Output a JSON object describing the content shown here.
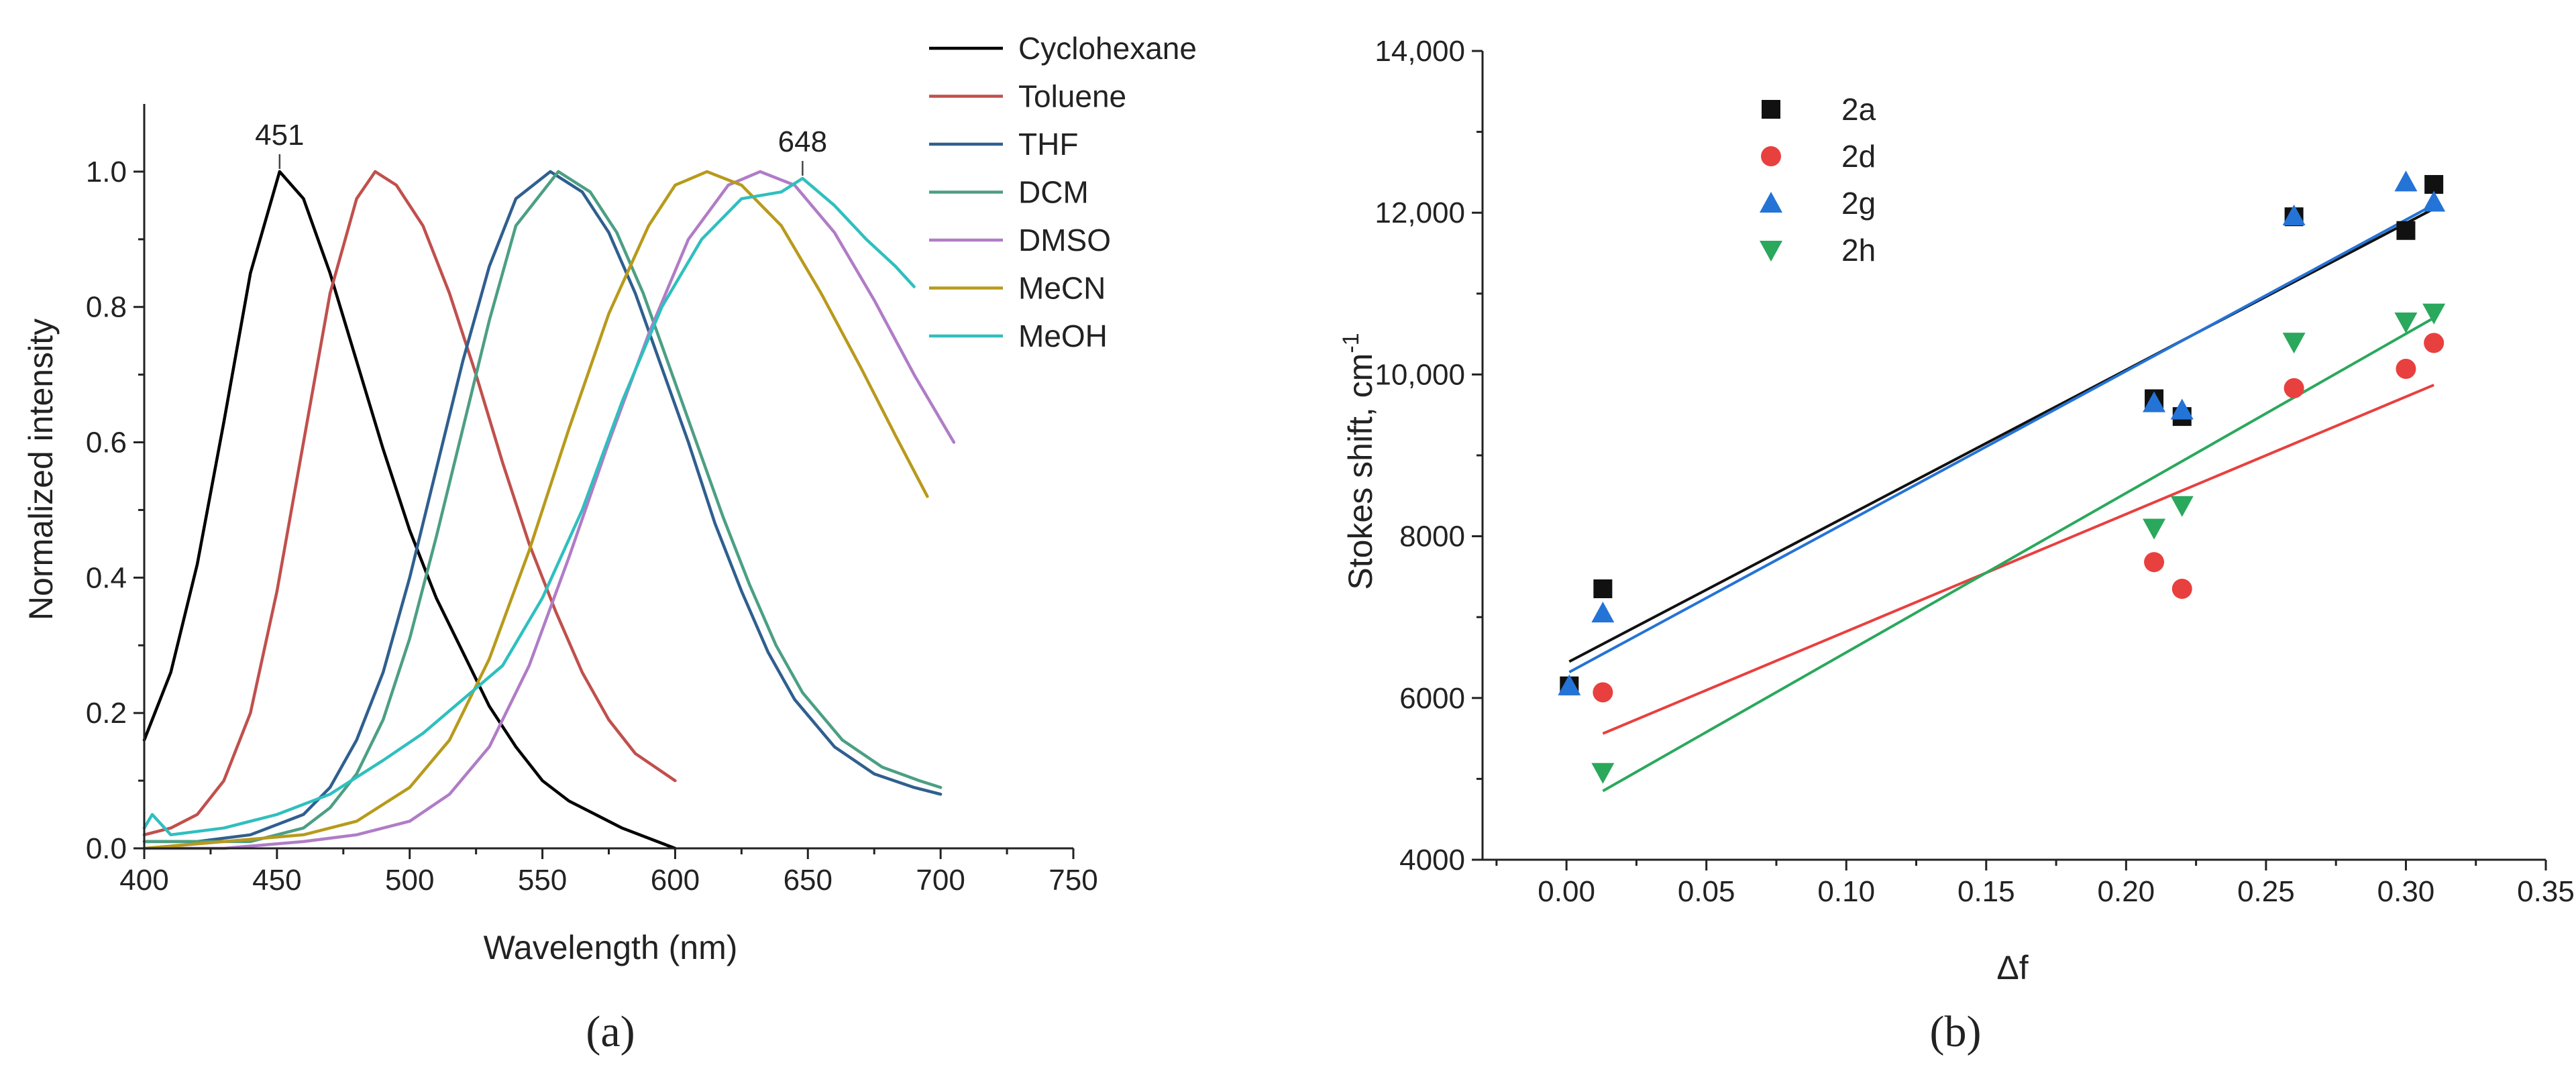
{
  "chart_data": [
    {
      "panel": "a",
      "panel_label": "(a)",
      "type": "line",
      "title": "",
      "xlabel": "Wavelength (nm)",
      "ylabel": "Normalized intensity",
      "xlim": [
        400,
        750
      ],
      "ylim": [
        0,
        1.1
      ],
      "xticks": [
        400,
        450,
        500,
        550,
        600,
        650,
        700,
        750
      ],
      "xtick_labels": [
        "400",
        "450",
        "500",
        "550",
        "600",
        "650",
        "700",
        "750"
      ],
      "yticks": [
        0,
        0.2,
        0.4,
        0.6,
        0.8,
        1.0
      ],
      "ytick_labels": [
        "0.0",
        "0.2",
        "0.4",
        "0.6",
        "0.8",
        "1.0"
      ],
      "legend_position": "top-right",
      "annotations": [
        {
          "text": "451",
          "x": 451,
          "y": 1.0
        },
        {
          "text": "648",
          "x": 648,
          "y": 0.99
        }
      ],
      "series": [
        {
          "name": "Cyclohexane",
          "color": "#000000",
          "x": [
            400,
            410,
            420,
            430,
            440,
            451,
            460,
            470,
            480,
            490,
            500,
            510,
            520,
            530,
            540,
            550,
            560,
            570,
            580,
            590,
            600
          ],
          "y": [
            0.16,
            0.26,
            0.42,
            0.63,
            0.85,
            1.0,
            0.96,
            0.85,
            0.72,
            0.59,
            0.47,
            0.37,
            0.29,
            0.21,
            0.15,
            0.1,
            0.07,
            0.05,
            0.03,
            0.015,
            0.0
          ]
        },
        {
          "name": "Toluene",
          "color": "#c0504d",
          "x": [
            400,
            410,
            420,
            430,
            440,
            450,
            460,
            470,
            480,
            487,
            495,
            505,
            515,
            525,
            535,
            545,
            555,
            565,
            575,
            585,
            600
          ],
          "y": [
            0.02,
            0.03,
            0.05,
            0.1,
            0.2,
            0.38,
            0.6,
            0.82,
            0.96,
            1.0,
            0.98,
            0.92,
            0.82,
            0.7,
            0.57,
            0.45,
            0.35,
            0.26,
            0.19,
            0.14,
            0.1
          ]
        },
        {
          "name": "THF",
          "color": "#2f5f8f",
          "x": [
            400,
            420,
            440,
            460,
            470,
            480,
            490,
            500,
            510,
            520,
            530,
            540,
            553,
            565,
            575,
            585,
            595,
            605,
            615,
            625,
            635,
            645,
            660,
            675,
            690,
            700
          ],
          "y": [
            0.01,
            0.01,
            0.02,
            0.05,
            0.09,
            0.16,
            0.26,
            0.4,
            0.56,
            0.72,
            0.86,
            0.96,
            1.0,
            0.97,
            0.91,
            0.82,
            0.71,
            0.6,
            0.48,
            0.38,
            0.29,
            0.22,
            0.15,
            0.11,
            0.09,
            0.08
          ]
        },
        {
          "name": "DCM",
          "color": "#4c9f84",
          "x": [
            400,
            420,
            440,
            460,
            470,
            480,
            490,
            500,
            510,
            520,
            530,
            540,
            556,
            568,
            578,
            588,
            598,
            608,
            618,
            628,
            638,
            648,
            663,
            678,
            692,
            700
          ],
          "y": [
            0.01,
            0.01,
            0.01,
            0.03,
            0.06,
            0.11,
            0.19,
            0.31,
            0.46,
            0.62,
            0.78,
            0.92,
            1.0,
            0.97,
            0.91,
            0.82,
            0.71,
            0.6,
            0.49,
            0.39,
            0.3,
            0.23,
            0.16,
            0.12,
            0.1,
            0.09
          ]
        },
        {
          "name": "DMSO",
          "color": "#b07cc6",
          "x": [
            400,
            430,
            460,
            480,
            500,
            515,
            530,
            545,
            560,
            575,
            590,
            605,
            620,
            632,
            645,
            660,
            675,
            690,
            705
          ],
          "y": [
            0.0,
            0.0,
            0.01,
            0.02,
            0.04,
            0.08,
            0.15,
            0.27,
            0.43,
            0.6,
            0.76,
            0.9,
            0.98,
            1.0,
            0.98,
            0.91,
            0.81,
            0.7,
            0.6
          ]
        },
        {
          "name": "MeCN",
          "color": "#b89a1c",
          "x": [
            400,
            430,
            460,
            480,
            500,
            515,
            530,
            545,
            560,
            575,
            590,
            600,
            612,
            625,
            640,
            655,
            670,
            683,
            695
          ],
          "y": [
            0.0,
            0.01,
            0.02,
            0.04,
            0.09,
            0.16,
            0.28,
            0.44,
            0.62,
            0.79,
            0.92,
            0.98,
            1.0,
            0.98,
            0.92,
            0.82,
            0.71,
            0.61,
            0.52
          ]
        },
        {
          "name": "MeOH",
          "color": "#2fbfbf",
          "x": [
            400,
            403,
            410,
            430,
            450,
            470,
            490,
            505,
            520,
            535,
            550,
            565,
            580,
            595,
            610,
            625,
            640,
            648,
            660,
            672,
            683,
            690
          ],
          "y": [
            0.03,
            0.05,
            0.02,
            0.03,
            0.05,
            0.08,
            0.13,
            0.17,
            0.22,
            0.27,
            0.37,
            0.5,
            0.66,
            0.8,
            0.9,
            0.96,
            0.97,
            0.99,
            0.95,
            0.9,
            0.86,
            0.83
          ]
        }
      ]
    },
    {
      "panel": "b",
      "panel_label": "(b)",
      "type": "scatter",
      "title": "",
      "xlabel": "Δf",
      "ylabel": "Stokes shift, cm",
      "ylabel_superscript": "-1",
      "xlim": [
        -0.03,
        0.35
      ],
      "ylim": [
        4000,
        14000
      ],
      "xticks": [
        0.0,
        0.05,
        0.1,
        0.15,
        0.2,
        0.25,
        0.3,
        0.35
      ],
      "xtick_labels": [
        "0.00",
        "0.05",
        "0.10",
        "0.15",
        "0.20",
        "0.25",
        "0.30",
        "0.35"
      ],
      "yticks": [
        4000,
        6000,
        8000,
        10000,
        12000,
        14000
      ],
      "ytick_labels": [
        "4000",
        "6000",
        "8000",
        "10,000",
        "12,000",
        "14,000"
      ],
      "legend_position": "top-left",
      "series": [
        {
          "name": "2a",
          "color": "#111111",
          "marker": "square",
          "x": [
            0.001,
            0.013,
            0.21,
            0.22,
            0.26,
            0.3,
            0.31
          ],
          "y": [
            6150,
            7350,
            9700,
            9480,
            11950,
            11780,
            12350
          ],
          "fit": [
            [
              0.001,
              6450
            ],
            [
              0.31,
              12050
            ]
          ]
        },
        {
          "name": "2d",
          "color": "#e8403f",
          "marker": "circle",
          "x": [
            0.013,
            0.21,
            0.22,
            0.26,
            0.3,
            0.31
          ],
          "y": [
            6070,
            7680,
            7350,
            9830,
            10070,
            10390
          ],
          "fit": [
            [
              0.013,
              5560
            ],
            [
              0.31,
              9870
            ]
          ]
        },
        {
          "name": "2g",
          "color": "#2473d6",
          "marker": "triangle-up",
          "x": [
            0.001,
            0.013,
            0.21,
            0.22,
            0.26,
            0.3,
            0.31
          ],
          "y": [
            6150,
            7050,
            9650,
            9560,
            11960,
            12380,
            12130
          ],
          "fit": [
            [
              0.001,
              6320
            ],
            [
              0.31,
              12100
            ]
          ]
        },
        {
          "name": "2h",
          "color": "#2aa85c",
          "marker": "triangle-down",
          "x": [
            0.013,
            0.21,
            0.22,
            0.26,
            0.3,
            0.31
          ],
          "y": [
            5080,
            8100,
            8380,
            10400,
            10650,
            10760
          ],
          "fit": [
            [
              0.013,
              4850
            ],
            [
              0.31,
              10700
            ]
          ]
        }
      ]
    }
  ]
}
